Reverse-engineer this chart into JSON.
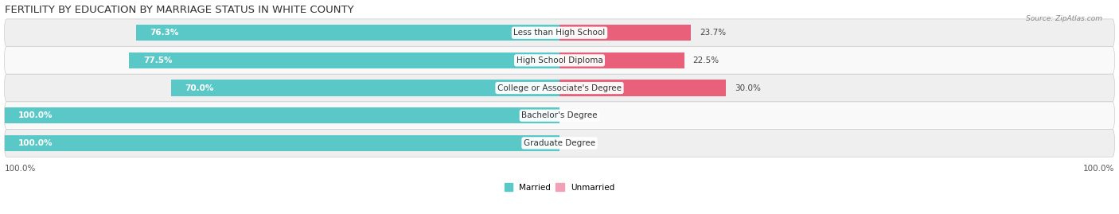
{
  "title": "FERTILITY BY EDUCATION BY MARRIAGE STATUS IN WHITE COUNTY",
  "source": "Source: ZipAtlas.com",
  "categories": [
    "Less than High School",
    "High School Diploma",
    "College or Associate's Degree",
    "Bachelor's Degree",
    "Graduate Degree"
  ],
  "married_values": [
    76.3,
    77.5,
    70.0,
    100.0,
    100.0
  ],
  "unmarried_values": [
    23.7,
    22.5,
    30.0,
    0.0,
    0.0
  ],
  "married_color": "#5BC8C8",
  "unmarried_color_strong": "#E8607A",
  "unmarried_color_light": "#F2A0B8",
  "row_bg_odd": "#EFEFEF",
  "row_bg_even": "#F9F9F9",
  "title_fontsize": 9.5,
  "label_fontsize": 7.5,
  "value_fontsize": 7.5,
  "bar_height": 0.58,
  "figsize": [
    14.06,
    2.69
  ],
  "dpi": 100,
  "x_axis_left_label": "100.0%",
  "x_axis_right_label": "100.0%"
}
